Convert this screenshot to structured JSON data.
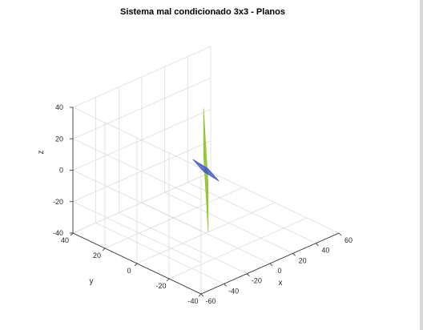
{
  "chart_data": {
    "type": "surface3d",
    "title": "Sistema mal condicionado 3x3 - Planos",
    "xlabel": "x",
    "ylabel": "y",
    "zlabel": "z",
    "xlim": [
      -60,
      60
    ],
    "ylim": [
      -40,
      40
    ],
    "zlim": [
      -40,
      40
    ],
    "xticks": [
      -60,
      -40,
      -20,
      0,
      20,
      40,
      60
    ],
    "yticks": [
      -40,
      -20,
      0,
      20,
      40
    ],
    "zticks": [
      -40,
      -20,
      0,
      20,
      40
    ],
    "grid": true,
    "view": {
      "azimuth": -37.5,
      "elevation": 30
    },
    "planes": [
      {
        "color": "#8fc31f",
        "opacity": 0.8,
        "corners": [
          [
            -2,
            0,
            40
          ],
          [
            12,
            10,
            0
          ],
          [
            2,
            0,
            -40
          ],
          [
            -12,
            -10,
            0
          ]
        ]
      },
      {
        "color": "#3a55c8",
        "opacity": 0.8,
        "corners": [
          [
            -3,
            6,
            5
          ],
          [
            -5,
            -5,
            5
          ],
          [
            3,
            -6,
            -5
          ],
          [
            5,
            5,
            -5
          ]
        ]
      }
    ]
  }
}
